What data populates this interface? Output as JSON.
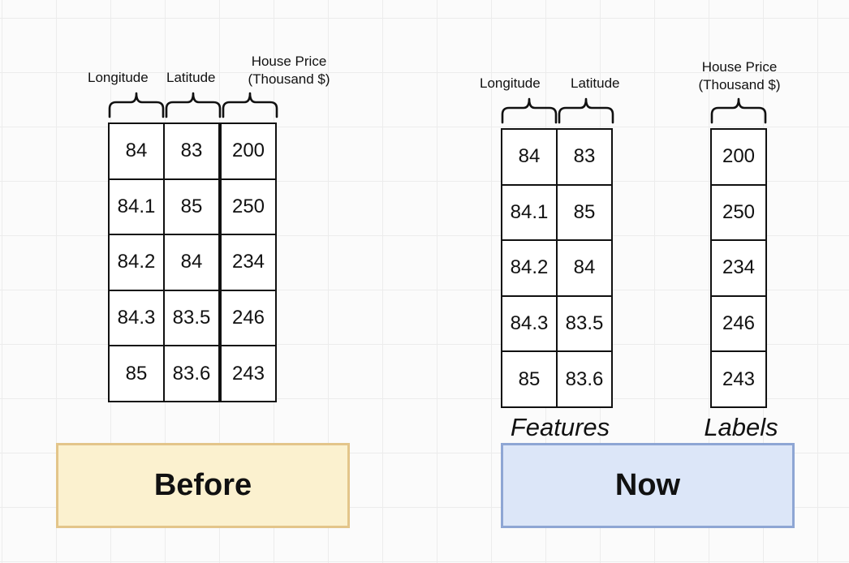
{
  "before": {
    "headers": {
      "longitude": "Longitude",
      "latitude": "Latitude",
      "price_line1": "House Price",
      "price_line2": "(Thousand $)"
    },
    "rows": [
      [
        "84",
        "83",
        "200"
      ],
      [
        "84.1",
        "85",
        "250"
      ],
      [
        "84.2",
        "84",
        "234"
      ],
      [
        "84.3",
        "83.5",
        "246"
      ],
      [
        "85",
        "83.6",
        "243"
      ]
    ],
    "label": "Before",
    "label_colors": {
      "fill": "#fbf1cf",
      "border": "#e3c58a"
    }
  },
  "now": {
    "headers": {
      "longitude": "Longitude",
      "latitude": "Latitude",
      "price_line1": "House Price",
      "price_line2": "(Thousand $)"
    },
    "feature_rows": [
      [
        "84",
        "83"
      ],
      [
        "84.1",
        "85"
      ],
      [
        "84.2",
        "84"
      ],
      [
        "84.3",
        "83.5"
      ],
      [
        "85",
        "83.6"
      ]
    ],
    "label_values": [
      "200",
      "250",
      "234",
      "246",
      "243"
    ],
    "features_caption": "Features",
    "labels_caption": "Labels",
    "label": "Now",
    "label_colors": {
      "fill": "#dce6f8",
      "border": "#8ea6d4"
    }
  }
}
